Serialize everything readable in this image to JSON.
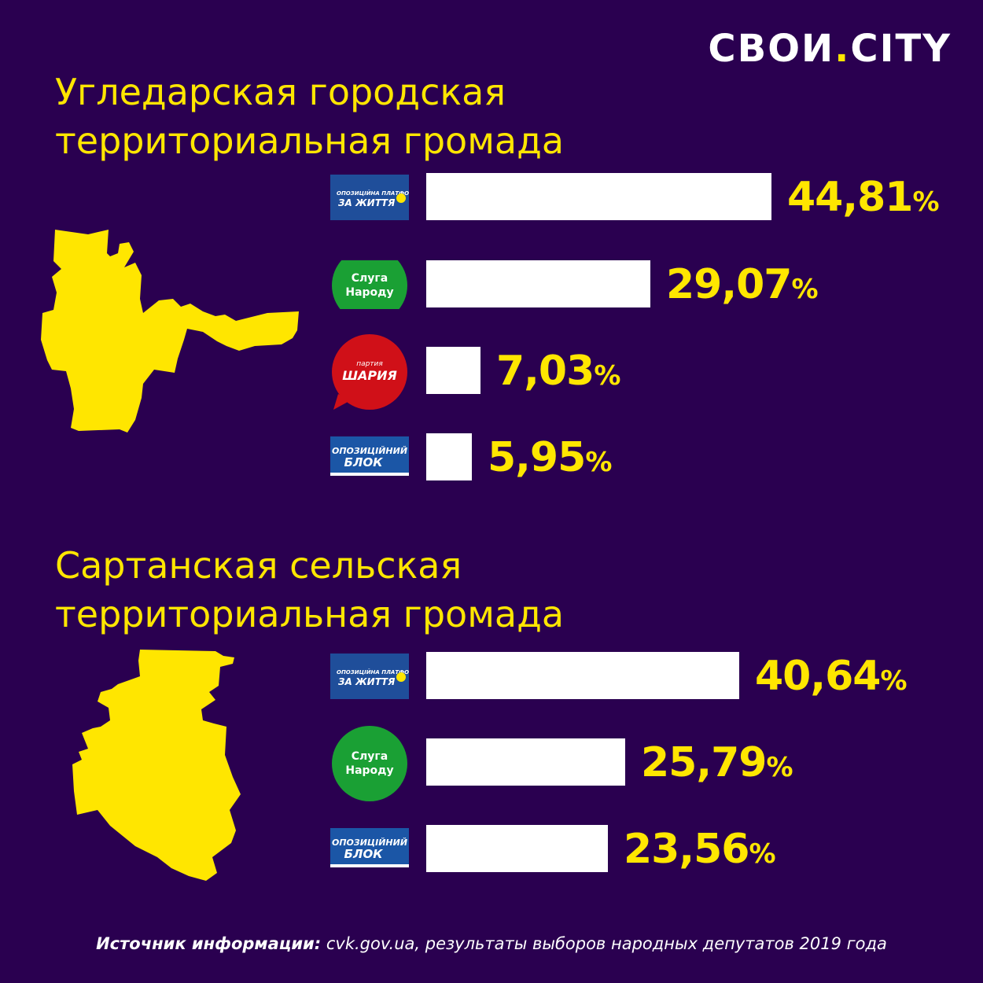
{
  "brand": {
    "name_left": "СВОИ",
    "dot": ".",
    "name_right": "CITY"
  },
  "colors": {
    "background": "#2a0050",
    "accent": "#ffe600",
    "bar": "#ffffff",
    "opzzh": "#1f4e9a",
    "sluha": "#1aa034",
    "shariy": "#d01018",
    "opblok": "#1b56a6"
  },
  "footer": {
    "label": "Источник информации:",
    "text": "cvk.gov.ua, результаты выборов народных депутатов 2019 года"
  },
  "chart_data": [
    {
      "type": "bar",
      "title_line1": "Угледарская городская",
      "title_line2": "территориальная громада",
      "unit": "%",
      "bars": [
        {
          "party_logo": "opzzh",
          "logo_text": [
            "ОПОЗИЦІЙНА ПЛАТФОРМА",
            "ЗА ЖИТТЯ"
          ],
          "value": 44.81,
          "label": "44,81"
        },
        {
          "party_logo": "sluha",
          "logo_text": [
            "Слуга",
            "Народу"
          ],
          "value": 29.07,
          "label": "29,07"
        },
        {
          "party_logo": "shariy",
          "logo_text": [
            "партия",
            "ШАРИЯ"
          ],
          "value": 7.03,
          "label": "7,03"
        },
        {
          "party_logo": "opblok",
          "logo_text": [
            "ОПОЗИЦІЙНИЙ",
            "БЛОК"
          ],
          "value": 5.95,
          "label": "5,95"
        }
      ]
    },
    {
      "type": "bar",
      "title_line1": "Сартанская сельская",
      "title_line2": "территориальная громада",
      "unit": "%",
      "bars": [
        {
          "party_logo": "opzzh",
          "logo_text": [
            "ОПОЗИЦІЙНА ПЛАТФОРМА",
            "ЗА ЖИТТЯ"
          ],
          "value": 40.64,
          "label": "40,64"
        },
        {
          "party_logo": "sluha",
          "logo_text": [
            "Слуга",
            "Народу"
          ],
          "value": 25.79,
          "label": "25,79"
        },
        {
          "party_logo": "opblok",
          "logo_text": [
            "ОПОЗИЦІЙНИЙ",
            "БЛОК"
          ],
          "value": 23.56,
          "label": "23,56"
        }
      ]
    }
  ]
}
